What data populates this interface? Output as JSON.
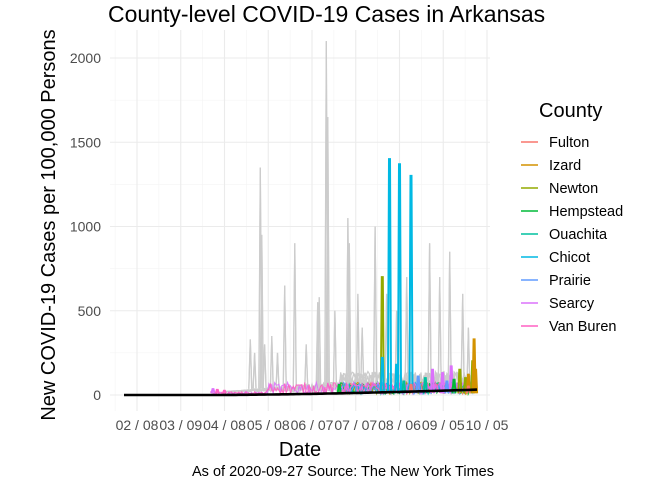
{
  "chart_data": {
    "type": "line",
    "title": "County-level COVID-19 Cases in Arkansas",
    "xlabel": "Date",
    "ylabel": "New COVID-19 Cases per 100,000 Persons",
    "caption": "As of 2020-09-27 Source: The New York Times",
    "x_tick_labels": [
      "02 / 08",
      "03 / 09",
      "04 / 08",
      "05 / 08",
      "06 / 07",
      "07 / 07",
      "08 / 06",
      "09 / 05",
      "10 / 05"
    ],
    "y_ticks": [
      0,
      500,
      1000,
      1500,
      2000
    ],
    "ylim": [
      0,
      2100
    ],
    "grid": true,
    "legend": {
      "title": "County",
      "placement": "right",
      "entries": [
        {
          "name": "Fulton",
          "color": "#F8766D"
        },
        {
          "name": "Izard",
          "color": "#D39200"
        },
        {
          "name": "Newton",
          "color": "#93AA00"
        },
        {
          "name": "Hempstead",
          "color": "#00BA38"
        },
        {
          "name": "Ouachita",
          "color": "#00C19F"
        },
        {
          "name": "Chicot",
          "color": "#00B9E3"
        },
        {
          "name": "Prairie",
          "color": "#619CFF"
        },
        {
          "name": "Searcy",
          "color": "#DB72FB"
        },
        {
          "name": "Van Buren",
          "color": "#FF61C3"
        }
      ]
    },
    "background_color": "#CCCCCC",
    "trend_color": "#000000",
    "x_domain_days": [
      0,
      246
    ],
    "background_spikes": [
      [
        88,
        330
      ],
      [
        91,
        250
      ],
      [
        95,
        1350
      ],
      [
        96,
        950
      ],
      [
        98,
        300
      ],
      [
        103,
        350
      ],
      [
        107,
        250
      ],
      [
        112,
        650
      ],
      [
        119,
        900
      ],
      [
        127,
        300
      ],
      [
        135,
        550
      ],
      [
        136,
        580
      ],
      [
        141,
        2100
      ],
      [
        142,
        1650
      ],
      [
        147,
        500
      ],
      [
        156,
        1050
      ],
      [
        157,
        900
      ],
      [
        163,
        600
      ],
      [
        166,
        400
      ],
      [
        175,
        1000
      ],
      [
        183,
        600
      ],
      [
        190,
        500
      ],
      [
        197,
        700
      ],
      [
        213,
        900
      ],
      [
        220,
        700
      ],
      [
        227,
        850
      ],
      [
        236,
        600
      ],
      [
        240,
        400
      ]
    ],
    "spikes": [
      {
        "series": "Newton",
        "points": [
          [
            180,
            700
          ],
          [
            234,
            150
          ],
          [
            238,
            100
          ],
          [
            243,
            200
          ]
        ]
      },
      {
        "series": "Chicot",
        "points": [
          [
            185,
            1400
          ],
          [
            192,
            1370
          ],
          [
            200,
            1300
          ],
          [
            180,
            220
          ],
          [
            190,
            180
          ]
        ]
      },
      {
        "series": "Izard",
        "points": [
          [
            244,
            330
          ],
          [
            245,
            150
          ],
          [
            240,
            120
          ]
        ]
      },
      {
        "series": "Searcy",
        "points": [
          [
            62,
            35
          ],
          [
            215,
            150
          ],
          [
            222,
            130
          ],
          [
            228,
            170
          ]
        ]
      },
      {
        "series": "Van Buren",
        "points": [
          [
            65,
            30
          ],
          [
            70,
            25
          ]
        ]
      },
      {
        "series": "Hempstead",
        "points": [
          [
            150,
            60
          ],
          [
            230,
            90
          ]
        ]
      },
      {
        "series": "Ouachita",
        "points": [
          [
            195,
            80
          ],
          [
            210,
            100
          ]
        ]
      },
      {
        "series": "Prairie",
        "points": [
          [
            205,
            110
          ],
          [
            225,
            80
          ]
        ]
      },
      {
        "series": "Fulton",
        "points": [
          [
            200,
            60
          ],
          [
            240,
            50
          ]
        ]
      }
    ]
  }
}
